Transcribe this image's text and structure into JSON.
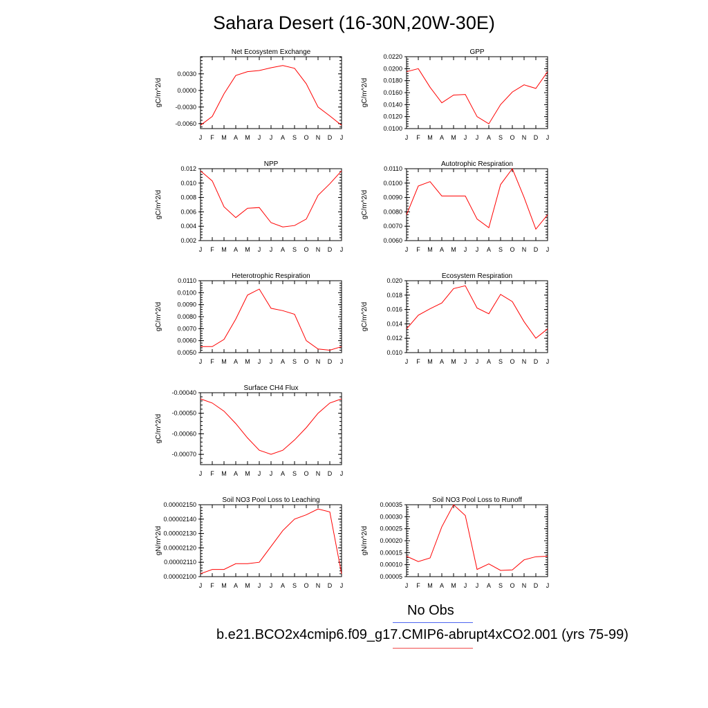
{
  "title": "Sahara Desert (16-30N,20W-30E)",
  "legend": {
    "obs_label": "No Obs",
    "obs_color": "#4b63f0",
    "model_label": "b.e21.BCO2x4cmip6.f09_g17.CMIP6-abrupt4xCO2.001 (yrs 75-99)",
    "model_color": "#ff0000"
  },
  "chart_data": [
    {
      "type": "line",
      "title": "Net Ecosystem Exchange",
      "ylabel": "gC/m^2/d",
      "categories": [
        "J",
        "F",
        "M",
        "A",
        "M",
        "J",
        "J",
        "A",
        "S",
        "O",
        "N",
        "D",
        "J"
      ],
      "ylim": [
        -0.0069,
        0.0061
      ],
      "yticks": [
        "0.0030",
        "0.0000",
        "-0.0030",
        "-0.0060"
      ],
      "ytick_values": [
        0.003,
        0.0,
        -0.003,
        -0.006
      ],
      "series": [
        {
          "values": [
            -0.0063,
            -0.0047,
            -0.0006,
            0.0027,
            0.0034,
            0.0036,
            0.0041,
            0.0045,
            0.004,
            0.0012,
            -0.003,
            -0.0046,
            -0.0063
          ]
        }
      ]
    },
    {
      "type": "line",
      "title": "GPP",
      "ylabel": "gC/m^2/d",
      "categories": [
        "J",
        "F",
        "M",
        "A",
        "M",
        "J",
        "J",
        "A",
        "S",
        "O",
        "N",
        "D",
        "J"
      ],
      "ylim": [
        0.01,
        0.022
      ],
      "yticks": [
        "0.0220",
        "0.0200",
        "0.0180",
        "0.0160",
        "0.0140",
        "0.0120",
        "0.0100"
      ],
      "ytick_values": [
        0.022,
        0.02,
        0.018,
        0.016,
        0.014,
        0.012,
        0.01
      ],
      "series": [
        {
          "values": [
            0.0195,
            0.02,
            0.0169,
            0.0143,
            0.0156,
            0.0157,
            0.012,
            0.0108,
            0.014,
            0.0161,
            0.0173,
            0.0167,
            0.0195
          ]
        }
      ]
    },
    {
      "type": "line",
      "title": "NPP",
      "ylabel": "gC/m^2/d",
      "categories": [
        "J",
        "F",
        "M",
        "A",
        "M",
        "J",
        "J",
        "A",
        "S",
        "O",
        "N",
        "D",
        "J"
      ],
      "ylim": [
        0.002,
        0.012
      ],
      "yticks": [
        "0.012",
        "0.010",
        "0.008",
        "0.006",
        "0.004",
        "0.002"
      ],
      "ytick_values": [
        0.012,
        0.01,
        0.008,
        0.006,
        0.004,
        0.002
      ],
      "series": [
        {
          "values": [
            0.0117,
            0.0103,
            0.0067,
            0.0052,
            0.0065,
            0.0066,
            0.0045,
            0.0039,
            0.0041,
            0.005,
            0.0083,
            0.0099,
            0.0117
          ]
        }
      ]
    },
    {
      "type": "line",
      "title": "Autotrophic Respiration",
      "ylabel": "gC/m^2/d",
      "categories": [
        "J",
        "F",
        "M",
        "A",
        "M",
        "J",
        "J",
        "A",
        "S",
        "O",
        "N",
        "D",
        "J"
      ],
      "ylim": [
        0.006,
        0.011
      ],
      "yticks": [
        "0.0110",
        "0.0100",
        "0.0090",
        "0.0080",
        "0.0070",
        "0.0060"
      ],
      "ytick_values": [
        0.011,
        0.01,
        0.009,
        0.008,
        0.007,
        0.006
      ],
      "series": [
        {
          "values": [
            0.0078,
            0.0098,
            0.0101,
            0.0091,
            0.0091,
            0.0091,
            0.0075,
            0.0069,
            0.0099,
            0.011,
            0.009,
            0.0068,
            0.0078
          ]
        }
      ]
    },
    {
      "type": "line",
      "title": "Heterotrophic Respiration",
      "ylabel": "gC/m^2/d",
      "categories": [
        "J",
        "F",
        "M",
        "A",
        "M",
        "J",
        "J",
        "A",
        "S",
        "O",
        "N",
        "D",
        "J"
      ],
      "ylim": [
        0.005,
        0.011
      ],
      "yticks": [
        "0.0110",
        "0.0100",
        "0.0090",
        "0.0080",
        "0.0070",
        "0.0060",
        "0.0050"
      ],
      "ytick_values": [
        0.011,
        0.01,
        0.009,
        0.008,
        0.007,
        0.006,
        0.005
      ],
      "series": [
        {
          "values": [
            0.0055,
            0.0055,
            0.0061,
            0.0078,
            0.0098,
            0.0103,
            0.0087,
            0.0085,
            0.0082,
            0.006,
            0.0053,
            0.0052,
            0.0055
          ]
        }
      ]
    },
    {
      "type": "line",
      "title": "Ecosystem Respiration",
      "ylabel": "gC/m^2/d",
      "categories": [
        "J",
        "F",
        "M",
        "A",
        "M",
        "J",
        "J",
        "A",
        "S",
        "O",
        "N",
        "D",
        "J"
      ],
      "ylim": [
        0.01,
        0.02
      ],
      "yticks": [
        "0.020",
        "0.018",
        "0.016",
        "0.014",
        "0.012",
        "0.010"
      ],
      "ytick_values": [
        0.02,
        0.018,
        0.016,
        0.014,
        0.012,
        0.01
      ],
      "series": [
        {
          "values": [
            0.0133,
            0.0152,
            0.0161,
            0.0169,
            0.0189,
            0.0193,
            0.0162,
            0.0154,
            0.0181,
            0.0171,
            0.0143,
            0.012,
            0.0133
          ]
        }
      ]
    },
    {
      "type": "line",
      "title": "Surface CH4 Flux",
      "ylabel": "gC/m^2/d",
      "categories": [
        "J",
        "F",
        "M",
        "A",
        "M",
        "J",
        "J",
        "A",
        "S",
        "O",
        "N",
        "D",
        "J"
      ],
      "ylim": [
        -0.00075,
        -0.0004
      ],
      "yticks": [
        "-0.00040",
        "-0.00050",
        "-0.00060",
        "-0.00070"
      ],
      "ytick_values": [
        -0.0004,
        -0.0005,
        -0.0006,
        -0.0007
      ],
      "series": [
        {
          "values": [
            -0.00043,
            -0.00045,
            -0.00049,
            -0.00055,
            -0.00062,
            -0.00068,
            -0.0007,
            -0.00068,
            -0.00063,
            -0.00057,
            -0.0005,
            -0.00045,
            -0.00043
          ]
        }
      ]
    },
    {
      "type": "line",
      "title": "Soil NO3 Pool Loss to Leaching",
      "ylabel": "gN/m^2/d",
      "categories": [
        "J",
        "F",
        "M",
        "A",
        "M",
        "J",
        "J",
        "A",
        "S",
        "O",
        "N",
        "D",
        "J"
      ],
      "ylim": [
        2.1e-05,
        2.15e-05
      ],
      "yticks": [
        "0.00002150",
        "0.00002140",
        "0.00002130",
        "0.00002120",
        "0.00002110",
        "0.00002100"
      ],
      "ytick_values": [
        2.15e-05,
        2.14e-05,
        2.13e-05,
        2.12e-05,
        2.11e-05,
        2.1e-05
      ],
      "series": [
        {
          "values": [
            2.102e-05,
            2.105e-05,
            2.105e-05,
            2.109e-05,
            2.109e-05,
            2.11e-05,
            2.121e-05,
            2.132e-05,
            2.14e-05,
            2.143e-05,
            2.147e-05,
            2.145e-05,
            2.102e-05
          ]
        }
      ]
    },
    {
      "type": "line",
      "title": "Soil NO3 Pool Loss to Runoff",
      "ylabel": "gN/m^2/d",
      "categories": [
        "J",
        "F",
        "M",
        "A",
        "M",
        "J",
        "J",
        "A",
        "S",
        "O",
        "N",
        "D",
        "J"
      ],
      "ylim": [
        5e-05,
        0.00035
      ],
      "yticks": [
        "0.00035",
        "0.00030",
        "0.00025",
        "0.00020",
        "0.00015",
        "0.00010",
        "0.00005"
      ],
      "ytick_values": [
        0.00035,
        0.0003,
        0.00025,
        0.0002,
        0.00015,
        0.0001,
        5e-05
      ],
      "series": [
        {
          "values": [
            0.000135,
            0.000113,
            0.000128,
            0.000258,
            0.00035,
            0.000305,
            8e-05,
            0.000103,
            7.6e-05,
            7.8e-05,
            0.00012,
            0.000133,
            0.000135
          ]
        }
      ]
    }
  ]
}
